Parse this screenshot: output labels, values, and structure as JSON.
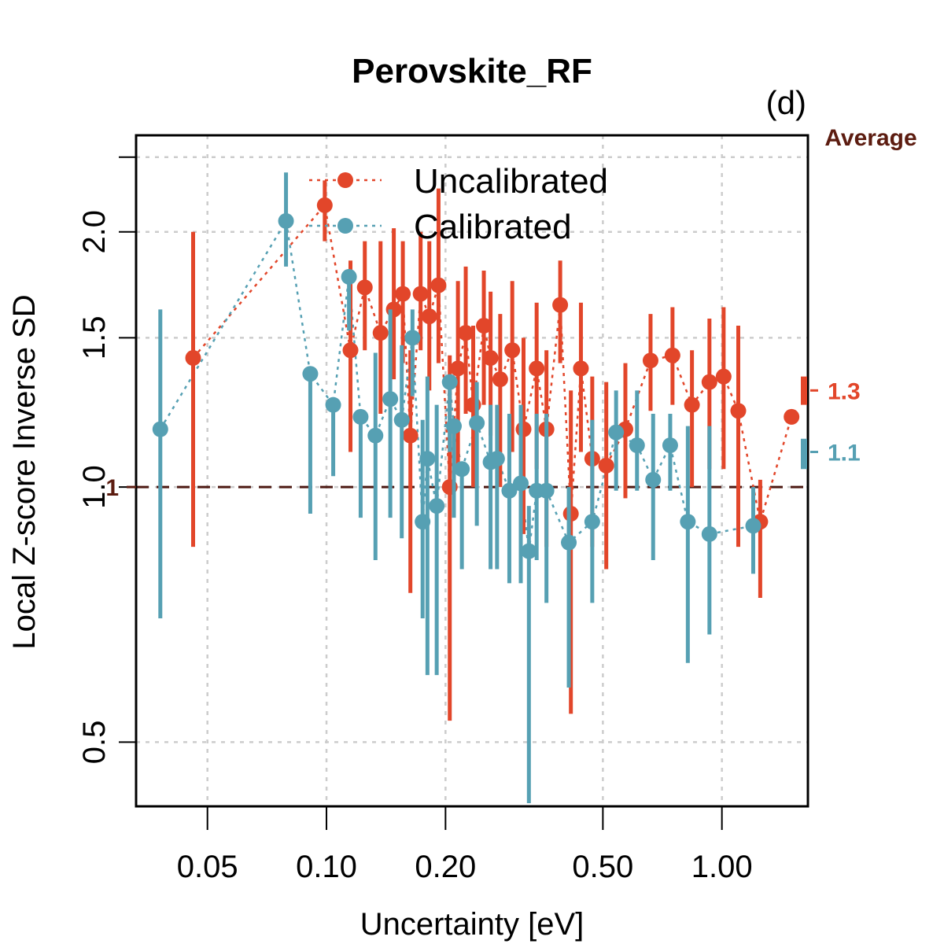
{
  "colors": {
    "uncalibrated": "#E2462A",
    "calibrated": "#56A0B3",
    "reference": "#4D1A13",
    "average": "#5C1C10"
  },
  "chart_data": {
    "type": "scatter",
    "title": "Perovskite_RF",
    "panel_label": "(d)",
    "xlabel": "Uncertainty [eV]",
    "ylabel": "Local Z-score Inverse SD",
    "x_scale": "log",
    "y_scale": "log",
    "xlim": [
      0.033,
      1.65
    ],
    "ylim": [
      0.42,
      2.6
    ],
    "x_ticks": [
      0.05,
      0.1,
      0.2,
      0.5,
      1.0
    ],
    "x_tick_labels": [
      "0.05",
      "0.10",
      "0.20",
      "0.50",
      "1.00"
    ],
    "y_ticks": [
      0.5,
      1.0,
      1.5,
      2.0
    ],
    "y_tick_labels": [
      "0.5",
      "1.0",
      "1.5",
      "2.0"
    ],
    "grid": true,
    "legend_position": "top-center",
    "reference_line": {
      "y": 1.0,
      "label": "1"
    },
    "average_header": "Average",
    "averages": [
      {
        "series": "Uncalibrated",
        "value": 1.3,
        "label": "1.3",
        "low": 1.25,
        "high": 1.35
      },
      {
        "series": "Calibrated",
        "value": 1.1,
        "label": "1.1",
        "low": 1.05,
        "high": 1.14
      }
    ],
    "series": [
      {
        "name": "Uncalibrated",
        "points": [
          {
            "x": 0.046,
            "y": 1.42,
            "lo": 0.85,
            "hi": 2.0
          },
          {
            "x": 0.099,
            "y": 2.15,
            "lo": 1.95,
            "hi": 2.3
          },
          {
            "x": 0.115,
            "y": 1.45,
            "lo": 1.1,
            "hi": 1.85
          },
          {
            "x": 0.125,
            "y": 1.72,
            "lo": 1.45,
            "hi": 1.95
          },
          {
            "x": 0.137,
            "y": 1.52,
            "lo": 1.22,
            "hi": 1.95
          },
          {
            "x": 0.148,
            "y": 1.62,
            "lo": 1.34,
            "hi": 2.02
          },
          {
            "x": 0.156,
            "y": 1.69,
            "lo": 1.4,
            "hi": 1.95
          },
          {
            "x": 0.163,
            "y": 1.15,
            "lo": 0.75,
            "hi": 1.45
          },
          {
            "x": 0.173,
            "y": 1.69,
            "lo": 1.45,
            "hi": 2.0
          },
          {
            "x": 0.182,
            "y": 1.59,
            "lo": 1.3,
            "hi": 1.95
          },
          {
            "x": 0.192,
            "y": 1.73,
            "lo": 1.4,
            "hi": 2.25
          },
          {
            "x": 0.205,
            "y": 1.0,
            "lo": 0.53,
            "hi": 1.43
          },
          {
            "x": 0.215,
            "y": 1.38,
            "lo": 1.05,
            "hi": 1.75
          },
          {
            "x": 0.225,
            "y": 1.52,
            "lo": 1.22,
            "hi": 1.82
          },
          {
            "x": 0.235,
            "y": 1.25,
            "lo": 1.0,
            "hi": 1.55
          },
          {
            "x": 0.25,
            "y": 1.55,
            "lo": 1.25,
            "hi": 1.8
          },
          {
            "x": 0.26,
            "y": 1.42,
            "lo": 1.15,
            "hi": 1.7
          },
          {
            "x": 0.275,
            "y": 1.34,
            "lo": 1.0,
            "hi": 1.6
          },
          {
            "x": 0.295,
            "y": 1.45,
            "lo": 1.1,
            "hi": 1.75
          },
          {
            "x": 0.315,
            "y": 1.17,
            "lo": 0.88,
            "hi": 1.5
          },
          {
            "x": 0.34,
            "y": 1.38,
            "lo": 1.05,
            "hi": 1.65
          },
          {
            "x": 0.36,
            "y": 1.17,
            "lo": 0.85,
            "hi": 1.45
          },
          {
            "x": 0.39,
            "y": 1.64,
            "lo": 1.4,
            "hi": 1.85
          },
          {
            "x": 0.415,
            "y": 0.93,
            "lo": 0.54,
            "hi": 1.3
          },
          {
            "x": 0.44,
            "y": 1.38,
            "lo": 1.1,
            "hi": 1.65
          },
          {
            "x": 0.47,
            "y": 1.08,
            "lo": 0.85,
            "hi": 1.35
          },
          {
            "x": 0.51,
            "y": 1.06,
            "lo": 0.8,
            "hi": 1.33
          },
          {
            "x": 0.57,
            "y": 1.17,
            "lo": 0.97,
            "hi": 1.4
          },
          {
            "x": 0.66,
            "y": 1.41,
            "lo": 1.23,
            "hi": 1.6
          },
          {
            "x": 0.75,
            "y": 1.43,
            "lo": 1.25,
            "hi": 1.63
          },
          {
            "x": 0.84,
            "y": 1.25,
            "lo": 1.0,
            "hi": 1.45
          },
          {
            "x": 0.93,
            "y": 1.33,
            "lo": 1.05,
            "hi": 1.58
          },
          {
            "x": 1.01,
            "y": 1.35,
            "lo": 1.05,
            "hi": 1.63
          },
          {
            "x": 1.1,
            "y": 1.23,
            "lo": 0.85,
            "hi": 1.55
          },
          {
            "x": 1.25,
            "y": 0.91,
            "lo": 0.74,
            "hi": 1.02
          },
          {
            "x": 1.5,
            "y": 1.21,
            "lo": 1.21,
            "hi": 1.21
          }
        ]
      },
      {
        "name": "Calibrated",
        "points": [
          {
            "x": 0.038,
            "y": 1.17,
            "lo": 0.7,
            "hi": 1.62
          },
          {
            "x": 0.079,
            "y": 2.06,
            "lo": 1.82,
            "hi": 2.35
          },
          {
            "x": 0.091,
            "y": 1.36,
            "lo": 0.93,
            "hi": 1.36
          },
          {
            "x": 0.104,
            "y": 1.25,
            "lo": 1.03,
            "hi": 1.25
          },
          {
            "x": 0.114,
            "y": 1.77,
            "lo": 1.53,
            "hi": 1.77
          },
          {
            "x": 0.122,
            "y": 1.21,
            "lo": 0.92,
            "hi": 1.21
          },
          {
            "x": 0.133,
            "y": 1.15,
            "lo": 0.82,
            "hi": 1.44
          },
          {
            "x": 0.145,
            "y": 1.27,
            "lo": 0.92,
            "hi": 1.62
          },
          {
            "x": 0.155,
            "y": 1.2,
            "lo": 0.87,
            "hi": 1.47
          },
          {
            "x": 0.165,
            "y": 1.5,
            "lo": 1.28,
            "hi": 1.62
          },
          {
            "x": 0.175,
            "y": 0.91,
            "lo": 0.7,
            "hi": 1.2
          },
          {
            "x": 0.18,
            "y": 1.08,
            "lo": 0.6,
            "hi": 1.35
          },
          {
            "x": 0.19,
            "y": 0.95,
            "lo": 0.6,
            "hi": 1.25
          },
          {
            "x": 0.205,
            "y": 1.33,
            "lo": 1.1,
            "hi": 1.33
          },
          {
            "x": 0.21,
            "y": 1.18,
            "lo": 0.92,
            "hi": 1.18
          },
          {
            "x": 0.22,
            "y": 1.05,
            "lo": 0.8,
            "hi": 1.05
          },
          {
            "x": 0.24,
            "y": 1.19,
            "lo": 0.9,
            "hi": 1.33
          },
          {
            "x": 0.26,
            "y": 1.07,
            "lo": 0.8,
            "hi": 1.25
          },
          {
            "x": 0.27,
            "y": 1.08,
            "lo": 0.8,
            "hi": 1.25
          },
          {
            "x": 0.29,
            "y": 0.99,
            "lo": 0.77,
            "hi": 1.22
          },
          {
            "x": 0.31,
            "y": 1.01,
            "lo": 0.77,
            "hi": 1.25
          },
          {
            "x": 0.325,
            "y": 0.84,
            "lo": 0.38,
            "hi": 0.95
          },
          {
            "x": 0.34,
            "y": 0.99,
            "lo": 0.82,
            "hi": 1.22
          },
          {
            "x": 0.36,
            "y": 0.99,
            "lo": 0.73,
            "hi": 1.22
          },
          {
            "x": 0.41,
            "y": 0.86,
            "lo": 0.58,
            "hi": 1.0
          },
          {
            "x": 0.47,
            "y": 0.91,
            "lo": 0.73,
            "hi": 1.2
          },
          {
            "x": 0.54,
            "y": 1.16,
            "lo": 0.99,
            "hi": 1.3
          },
          {
            "x": 0.61,
            "y": 1.12,
            "lo": 0.99,
            "hi": 1.3
          },
          {
            "x": 0.67,
            "y": 1.02,
            "lo": 0.82,
            "hi": 1.22
          },
          {
            "x": 0.74,
            "y": 1.12,
            "lo": 0.99,
            "hi": 1.22
          },
          {
            "x": 0.82,
            "y": 0.91,
            "lo": 0.62,
            "hi": 1.18
          },
          {
            "x": 0.93,
            "y": 0.88,
            "lo": 0.67,
            "hi": 1.18
          },
          {
            "x": 1.2,
            "y": 0.9,
            "lo": 0.79,
            "hi": 1.0
          }
        ]
      }
    ]
  }
}
